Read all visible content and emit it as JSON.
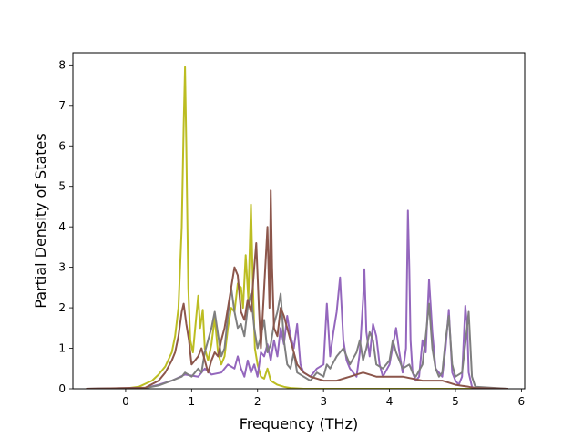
{
  "chart_data": {
    "type": "line",
    "xlabel": "Frequency (THz)",
    "ylabel": "Partial Density of States",
    "xlim": [
      -0.8,
      6.05
    ],
    "ylim": [
      0,
      8.3
    ],
    "xticks": [
      0,
      1,
      2,
      3,
      4,
      5,
      6
    ],
    "yticks": [
      0,
      1,
      2,
      3,
      4,
      5,
      6,
      7,
      8
    ],
    "grid": false,
    "legend": "none",
    "series": [
      {
        "color": "#bcbd22",
        "x": [
          -0.6,
          0.0,
          0.2,
          0.4,
          0.5,
          0.6,
          0.7,
          0.75,
          0.8,
          0.85,
          0.88,
          0.9,
          0.92,
          0.95,
          0.98,
          1.02,
          1.06,
          1.1,
          1.13,
          1.17,
          1.2,
          1.25,
          1.3,
          1.35,
          1.4,
          1.45,
          1.5,
          1.55,
          1.6,
          1.65,
          1.7,
          1.75,
          1.78,
          1.82,
          1.86,
          1.9,
          1.93,
          1.96,
          2.0,
          2.05,
          2.1,
          2.15,
          2.2,
          2.3,
          2.4,
          2.5,
          2.7,
          3.0,
          5.8
        ],
        "y": [
          0,
          0.01,
          0.05,
          0.2,
          0.35,
          0.55,
          0.9,
          1.3,
          2.0,
          4.0,
          6.5,
          7.95,
          6.0,
          2.5,
          1.2,
          0.9,
          1.6,
          2.3,
          1.5,
          1.95,
          1.0,
          0.7,
          1.1,
          1.75,
          0.9,
          0.6,
          0.8,
          1.5,
          2.0,
          1.9,
          2.6,
          2.5,
          2.0,
          3.3,
          2.2,
          4.55,
          2.5,
          1.0,
          0.6,
          0.3,
          0.25,
          0.5,
          0.2,
          0.1,
          0.05,
          0.02,
          0,
          0,
          0
        ]
      },
      {
        "color": "#9467bd",
        "x": [
          -0.6,
          0.3,
          0.5,
          0.7,
          0.9,
          1.1,
          1.2,
          1.3,
          1.45,
          1.55,
          1.65,
          1.7,
          1.75,
          1.8,
          1.85,
          1.9,
          1.95,
          2.0,
          2.05,
          2.1,
          2.15,
          2.2,
          2.25,
          2.3,
          2.35,
          2.4,
          2.45,
          2.5,
          2.55,
          2.6,
          2.65,
          2.7,
          2.8,
          2.9,
          3.0,
          3.05,
          3.1,
          3.15,
          3.2,
          3.25,
          3.3,
          3.35,
          3.4,
          3.5,
          3.55,
          3.6,
          3.62,
          3.65,
          3.7,
          3.75,
          3.8,
          3.85,
          3.9,
          4.0,
          4.1,
          4.15,
          4.2,
          4.25,
          4.28,
          4.3,
          4.32,
          4.35,
          4.4,
          4.45,
          4.5,
          4.55,
          4.6,
          4.65,
          4.7,
          4.8,
          4.85,
          4.9,
          4.95,
          5.0,
          5.05,
          5.1,
          5.15,
          5.18,
          5.2,
          5.25,
          5.3,
          5.8
        ],
        "y": [
          0,
          0.02,
          0.1,
          0.2,
          0.35,
          0.3,
          0.5,
          0.35,
          0.4,
          0.6,
          0.5,
          0.8,
          0.5,
          0.3,
          0.7,
          0.4,
          0.6,
          0.3,
          0.9,
          0.8,
          1.1,
          0.7,
          1.2,
          0.8,
          1.5,
          1.1,
          1.8,
          1.3,
          1.0,
          1.6,
          0.6,
          0.4,
          0.3,
          0.5,
          0.6,
          2.1,
          0.8,
          1.4,
          1.9,
          2.75,
          1.2,
          0.7,
          0.5,
          0.3,
          0.9,
          2.2,
          2.95,
          1.4,
          0.8,
          1.6,
          1.3,
          0.6,
          0.3,
          0.6,
          1.5,
          0.9,
          0.4,
          1.0,
          4.4,
          3.0,
          1.2,
          0.4,
          0.2,
          0.3,
          1.2,
          0.9,
          2.7,
          1.4,
          0.5,
          0.3,
          1.0,
          1.95,
          0.4,
          0.2,
          0.1,
          0.3,
          2.05,
          1.5,
          0.4,
          0.05,
          0,
          0
        ]
      },
      {
        "color": "#7f7f7f",
        "x": [
          -0.6,
          0.3,
          0.5,
          0.7,
          0.85,
          0.9,
          1.0,
          1.1,
          1.15,
          1.2,
          1.3,
          1.35,
          1.45,
          1.5,
          1.55,
          1.6,
          1.65,
          1.7,
          1.75,
          1.8,
          1.85,
          1.9,
          1.95,
          2.0,
          2.05,
          2.1,
          2.15,
          2.2,
          2.25,
          2.3,
          2.35,
          2.4,
          2.45,
          2.5,
          2.55,
          2.6,
          2.7,
          2.8,
          2.9,
          3.0,
          3.05,
          3.1,
          3.2,
          3.3,
          3.4,
          3.5,
          3.55,
          3.6,
          3.65,
          3.7,
          3.75,
          3.8,
          3.9,
          4.0,
          4.05,
          4.1,
          4.2,
          4.3,
          4.35,
          4.4,
          4.5,
          4.55,
          4.6,
          4.65,
          4.7,
          4.75,
          4.8,
          4.85,
          4.9,
          4.95,
          5.0,
          5.1,
          5.15,
          5.2,
          5.25,
          5.3,
          5.8
        ],
        "y": [
          0,
          0.02,
          0.08,
          0.2,
          0.3,
          0.4,
          0.3,
          0.5,
          0.4,
          0.9,
          1.5,
          1.9,
          0.8,
          1.0,
          1.8,
          2.5,
          1.9,
          1.5,
          1.6,
          1.3,
          2.0,
          2.35,
          1.5,
          1.0,
          1.3,
          1.7,
          0.9,
          1.1,
          1.6,
          1.9,
          2.35,
          1.2,
          0.6,
          0.5,
          0.9,
          0.4,
          0.3,
          0.2,
          0.4,
          0.3,
          0.6,
          0.5,
          0.8,
          1.0,
          0.6,
          0.9,
          1.2,
          0.7,
          1.0,
          1.4,
          1.2,
          0.6,
          0.5,
          0.7,
          1.2,
          0.9,
          0.5,
          0.6,
          0.4,
          0.3,
          0.6,
          1.3,
          2.1,
          1.0,
          0.5,
          0.3,
          0.4,
          1.2,
          1.8,
          0.6,
          0.3,
          0.4,
          1.1,
          1.9,
          0.3,
          0.05,
          0
        ]
      },
      {
        "color": "#8c564b",
        "x": [
          -0.6,
          0.3,
          0.5,
          0.6,
          0.7,
          0.75,
          0.8,
          0.85,
          0.88,
          0.92,
          0.96,
          1.0,
          1.05,
          1.1,
          1.15,
          1.2,
          1.25,
          1.3,
          1.35,
          1.4,
          1.45,
          1.5,
          1.55,
          1.6,
          1.65,
          1.7,
          1.75,
          1.8,
          1.85,
          1.9,
          1.95,
          1.98,
          2.02,
          2.05,
          2.1,
          2.15,
          2.18,
          2.2,
          2.22,
          2.25,
          2.3,
          2.35,
          2.4,
          2.5,
          2.6,
          2.7,
          2.8,
          3.0,
          3.2,
          3.4,
          3.6,
          3.8,
          4.0,
          4.2,
          4.5,
          4.8,
          5.0,
          5.2,
          5.3,
          5.8
        ],
        "y": [
          0,
          0.03,
          0.2,
          0.4,
          0.7,
          0.9,
          1.3,
          1.9,
          2.1,
          1.6,
          1.2,
          0.6,
          0.7,
          0.8,
          1.0,
          0.7,
          0.4,
          0.7,
          0.9,
          0.8,
          1.2,
          1.5,
          2.0,
          2.5,
          3.0,
          2.8,
          1.9,
          1.7,
          2.2,
          1.9,
          3.0,
          3.6,
          2.0,
          1.0,
          2.5,
          4.0,
          2.0,
          4.9,
          3.0,
          1.5,
          1.3,
          2.0,
          1.8,
          1.2,
          0.6,
          0.4,
          0.3,
          0.2,
          0.2,
          0.3,
          0.4,
          0.3,
          0.3,
          0.3,
          0.2,
          0.2,
          0.1,
          0.05,
          0.02,
          0
        ]
      }
    ]
  }
}
